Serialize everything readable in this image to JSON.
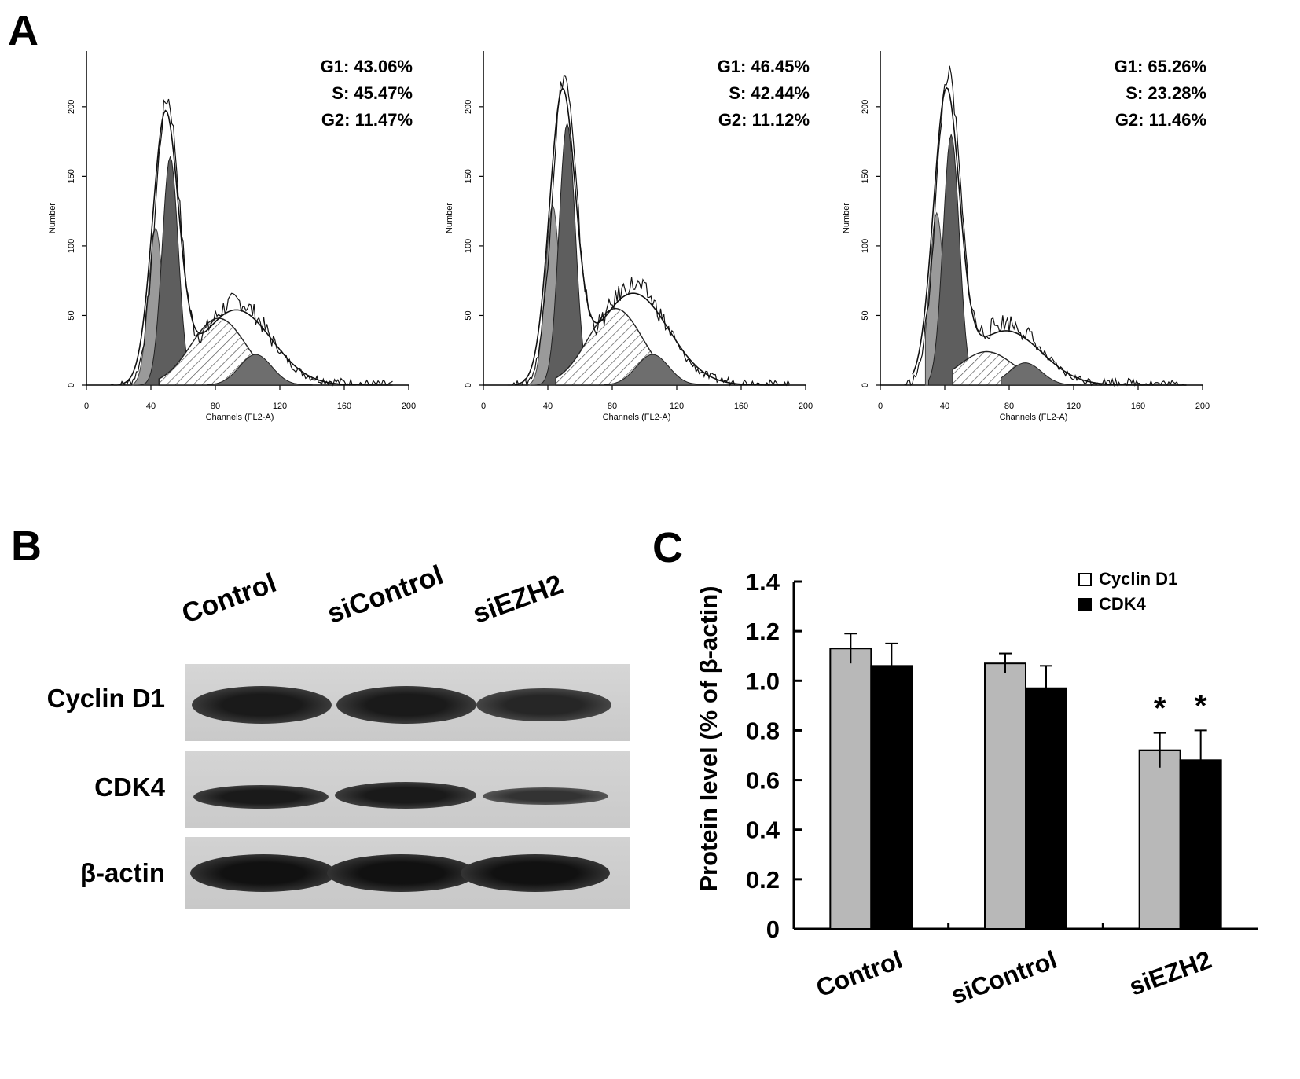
{
  "panels": {
    "a": "A",
    "b": "B",
    "c": "C"
  },
  "flow_panels": [
    {
      "g1": "G1: 43.06%",
      "s": "S: 45.47%",
      "g2": "G2: 11.47%",
      "g1_pct": 43.06,
      "s_pct": 45.47,
      "g2_pct": 11.47,
      "peak": 205,
      "s_height": 48,
      "g2_height": 22,
      "total_peak": 200,
      "total_s": 60
    },
    {
      "g1": "G1: 46.45%",
      "s": "S: 42.44%",
      "g2": "G2: 11.12%",
      "g1_pct": 46.45,
      "s_pct": 42.44,
      "g2_pct": 11.12,
      "peak": 235,
      "s_height": 55,
      "g2_height": 22,
      "total_peak": 215,
      "total_s": 72
    },
    {
      "g1": "G1: 65.26%",
      "s": "S: 23.28%",
      "g2": "G2: 11.46%",
      "g1_pct": 65.26,
      "s_pct": 23.28,
      "g2_pct": 11.46,
      "peak": 225,
      "s_height": 24,
      "g2_height": 16,
      "total_peak": 215,
      "total_s": 45
    }
  ],
  "flow_axes": {
    "xlabel": "Channels (FL2-A)",
    "ylabel": "Number",
    "xticks": [
      "0",
      "40",
      "80",
      "120",
      "160",
      "200"
    ],
    "yticks": [
      "0",
      "50",
      "100",
      "150",
      "200"
    ],
    "xlim": [
      0,
      200
    ],
    "ylim": [
      0,
      240
    ]
  },
  "blot": {
    "lanes": [
      "Control",
      "siControl",
      "siEZH2"
    ],
    "rows": [
      "Cyclin D1",
      "CDK4",
      "β-actin"
    ]
  },
  "chart_data": {
    "type": "bar",
    "categories": [
      "Control",
      "siControl",
      "siEZH2"
    ],
    "series": [
      {
        "name": "Cyclin D1",
        "values": [
          1.13,
          1.07,
          0.72
        ],
        "errors": [
          0.06,
          0.04,
          0.07
        ],
        "color": "#b8b8b8"
      },
      {
        "name": "CDK4",
        "values": [
          1.06,
          0.97,
          0.68
        ],
        "errors": [
          0.09,
          0.09,
          0.12
        ],
        "color": "#000000"
      }
    ],
    "ylabel": "Protein level (% of β-actin)",
    "ylim": [
      0,
      1.4
    ],
    "yticks": [
      "0",
      "0.2",
      "0.4",
      "0.6",
      "0.8",
      "1.0",
      "1.2",
      "1.4"
    ],
    "annotations": [
      "*",
      "*"
    ],
    "legend": "top-right"
  }
}
